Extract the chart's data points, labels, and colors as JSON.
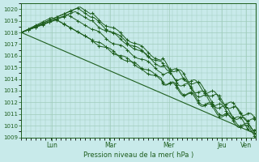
{
  "xlabel": "Pression niveau de la mer( hPa )",
  "ylim": [
    1009,
    1020.5
  ],
  "yticks": [
    1009,
    1010,
    1011,
    1012,
    1013,
    1014,
    1015,
    1016,
    1017,
    1018,
    1019,
    1020
  ],
  "day_labels": [
    "Lun",
    "Mar",
    "Mer",
    "Jeu",
    "Ven"
  ],
  "day_positions": [
    0.13,
    0.38,
    0.63,
    0.855,
    0.96
  ],
  "bg_color": "#c8eaea",
  "grid_color": "#a0ccbb",
  "line_color": "#1e5e1e",
  "n_points": 200
}
